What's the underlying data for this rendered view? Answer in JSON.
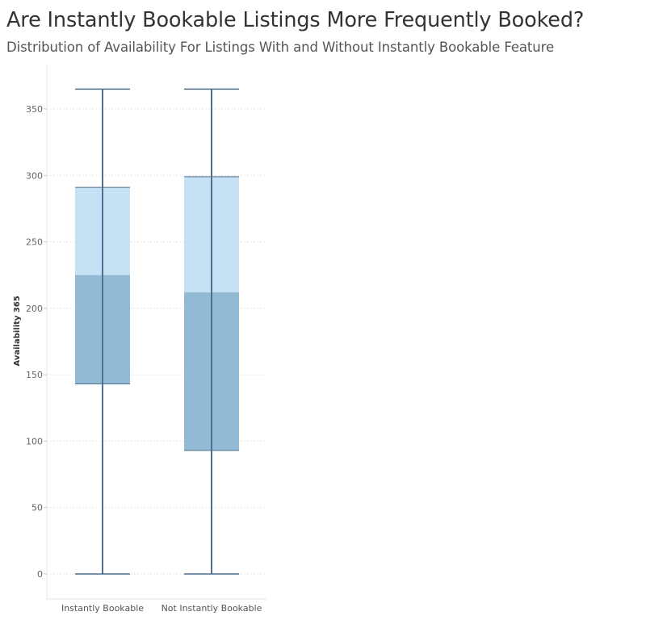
{
  "title": "Are Instantly Bookable Listings More Frequently Booked?",
  "subtitle": "Distribution of Availability For Listings With and Without Instantly Bookable Feature",
  "chart_data": {
    "type": "box",
    "ylabel": "Availability 365",
    "xlabel": "",
    "ylim": [
      0,
      365
    ],
    "yticks": [
      0,
      50,
      100,
      150,
      200,
      250,
      300,
      350
    ],
    "grid": true,
    "categories": [
      "Instantly Bookable",
      "Not Instantly Bookable"
    ],
    "boxes": [
      {
        "category": "Instantly Bookable",
        "min": 0,
        "q1": 143,
        "median": 225,
        "q3": 291,
        "max": 365
      },
      {
        "category": "Not Instantly Bookable",
        "min": 0,
        "q1": 93,
        "median": 212,
        "q3": 299,
        "max": 365
      }
    ],
    "colors": {
      "lower_box": "#93bad5",
      "upper_box": "#c6e1f3",
      "whisker": "#4e6f8e",
      "grid": "#e6e6e6"
    }
  }
}
